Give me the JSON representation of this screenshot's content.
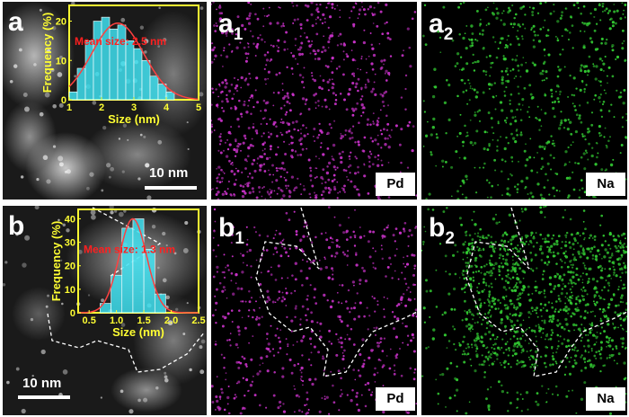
{
  "panels": {
    "a": {
      "label": "a"
    },
    "a1": {
      "label": "a",
      "sub": "1",
      "element": "Pd"
    },
    "a2": {
      "label": "a",
      "sub": "2",
      "element": "Na"
    },
    "b": {
      "label": "b"
    },
    "b1": {
      "label": "b",
      "sub": "1",
      "element": "Pd"
    },
    "b2": {
      "label": "b",
      "sub": "2",
      "element": "Na"
    }
  },
  "scale_bars": {
    "a": {
      "label": "10 nm"
    },
    "b": {
      "label": "10 nm"
    }
  },
  "colors": {
    "pd_map": "#c832c8",
    "na_map": "#32c832",
    "histogram_fill": "#40e0f0",
    "histogram_frame": "#ffff33",
    "fit_curve": "#ff4040",
    "annotation_text": "#ff2020",
    "axis_text": "#ffff33"
  },
  "chart_data": [
    {
      "type": "bar",
      "panel": "a",
      "xlabel": "Size (nm)",
      "ylabel": "Frequency (%)",
      "annotation": "Mean size: 2.5 nm",
      "xticks": [
        "1",
        "2",
        "3",
        "4",
        "5"
      ],
      "yticks": [
        "0",
        "10",
        "20"
      ],
      "xlim": [
        1,
        5
      ],
      "ylim": [
        0,
        24
      ],
      "bin_width": 0.25,
      "x": [
        1.125,
        1.375,
        1.625,
        1.875,
        2.125,
        2.375,
        2.625,
        2.875,
        3.125,
        3.375,
        3.625,
        3.875,
        4.125
      ],
      "values": [
        2,
        8,
        15,
        20,
        21,
        18,
        19,
        15,
        13,
        10,
        6,
        4,
        2
      ],
      "fit": {
        "type": "gaussian",
        "mean": 2.5,
        "sigma": 0.8,
        "peak": 19.5
      }
    },
    {
      "type": "bar",
      "panel": "b",
      "xlabel": "Size (nm)",
      "ylabel": "Frequency (%)",
      "annotation": "Mean size: 1.3 nm",
      "xticks": [
        "0.5",
        "1.0",
        "1.5",
        "2.0",
        "2.5"
      ],
      "yticks": [
        "0",
        "10",
        "20",
        "30",
        "40"
      ],
      "xlim": [
        0.3,
        2.5
      ],
      "ylim": [
        0,
        44
      ],
      "bin_width": 0.2,
      "x": [
        0.8,
        1.0,
        1.2,
        1.4,
        1.6,
        1.8
      ],
      "values": [
        4,
        16,
        36,
        40,
        27,
        8
      ],
      "fit": {
        "type": "gaussian",
        "mean": 1.3,
        "sigma": 0.25,
        "peak": 40
      }
    }
  ]
}
